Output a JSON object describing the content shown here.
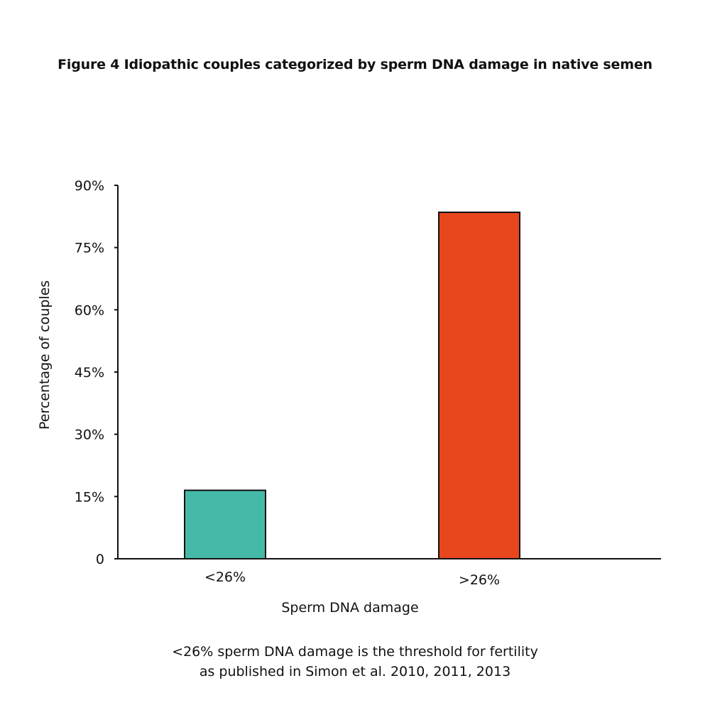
{
  "chart_data": {
    "type": "bar",
    "title": "Figure 4 Idiopathic couples categorized by sperm DNA damage in native semen",
    "xlabel": "Sperm DNA damage",
    "ylabel": "Percentage of couples",
    "categories": [
      "<26%",
      ">26%"
    ],
    "values": [
      16.5,
      83.5
    ],
    "ylim": [
      0,
      90
    ],
    "yticks": [
      0,
      15,
      30,
      45,
      60,
      75,
      90
    ],
    "ytick_labels": [
      "0",
      "15%",
      "30%",
      "45%",
      "60%",
      "75%",
      "90%"
    ],
    "bar_colors": [
      "#45b9a8",
      "#e8461c"
    ],
    "grid": false,
    "legend": "none"
  },
  "footnote": {
    "line1": "<26% sperm DNA damage is the threshold for fertility",
    "line2": "as published in Simon et al. 2010, 2011, 2013"
  }
}
